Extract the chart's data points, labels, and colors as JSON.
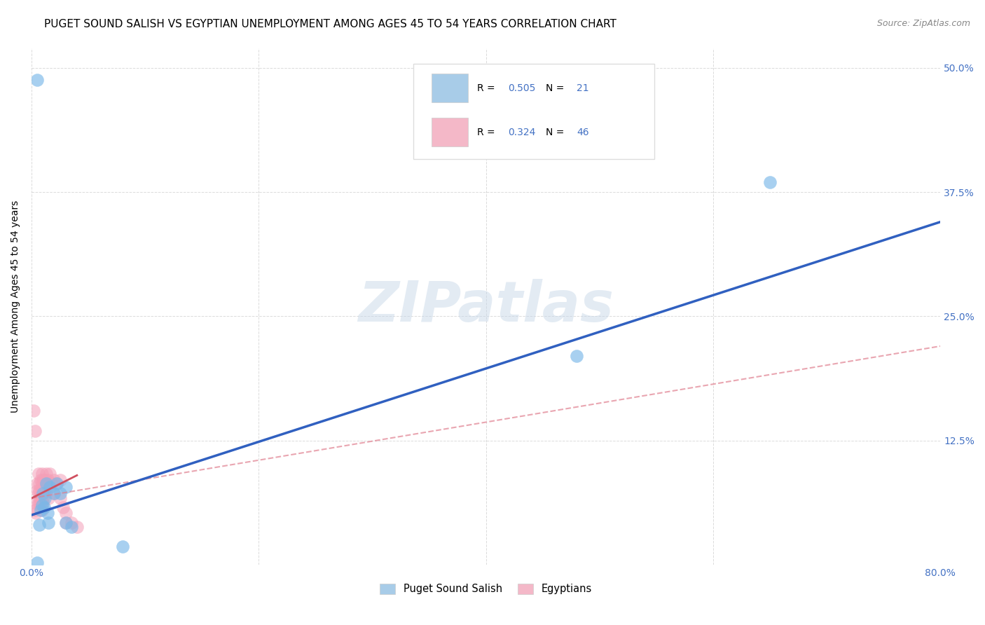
{
  "title": "PUGET SOUND SALISH VS EGYPTIAN UNEMPLOYMENT AMONG AGES 45 TO 54 YEARS CORRELATION CHART",
  "source": "Source: ZipAtlas.com",
  "ylabel": "Unemployment Among Ages 45 to 54 years",
  "x_ticks_pct": [
    0.0,
    0.2,
    0.4,
    0.6,
    0.8
  ],
  "y_ticks_pct": [
    0.0,
    0.125,
    0.25,
    0.375,
    0.5
  ],
  "y_tick_labels": [
    "",
    "12.5%",
    "25.0%",
    "37.5%",
    "50.0%"
  ],
  "watermark": "ZIPatlas",
  "legend_label1": "Puget Sound Salish",
  "legend_label2": "Egyptians",
  "blue_color": "#7ab8e8",
  "pink_color": "#f4a0b8",
  "blue_patch_color": "#a8cce8",
  "pink_patch_color": "#f4b8c8",
  "blue_line_color": "#3060c0",
  "pink_line_solid_color": "#d05060",
  "pink_line_dashed_color": "#e08090",
  "tick_color": "#4472C4",
  "blue_scatter": [
    [
      0.005,
      0.488
    ],
    [
      0.005,
      0.002
    ],
    [
      0.007,
      0.04
    ],
    [
      0.008,
      0.055
    ],
    [
      0.009,
      0.06
    ],
    [
      0.01,
      0.072
    ],
    [
      0.011,
      0.058
    ],
    [
      0.012,
      0.067
    ],
    [
      0.013,
      0.082
    ],
    [
      0.014,
      0.052
    ],
    [
      0.015,
      0.042
    ],
    [
      0.016,
      0.078
    ],
    [
      0.02,
      0.072
    ],
    [
      0.022,
      0.082
    ],
    [
      0.025,
      0.072
    ],
    [
      0.03,
      0.078
    ],
    [
      0.03,
      0.042
    ],
    [
      0.035,
      0.038
    ],
    [
      0.08,
      0.018
    ],
    [
      0.48,
      0.21
    ],
    [
      0.65,
      0.385
    ]
  ],
  "pink_scatter": [
    [
      0.002,
      0.155
    ],
    [
      0.003,
      0.135
    ],
    [
      0.003,
      0.055
    ],
    [
      0.004,
      0.062
    ],
    [
      0.004,
      0.052
    ],
    [
      0.005,
      0.082
    ],
    [
      0.005,
      0.075
    ],
    [
      0.006,
      0.092
    ],
    [
      0.006,
      0.072
    ],
    [
      0.006,
      0.062
    ],
    [
      0.007,
      0.082
    ],
    [
      0.007,
      0.075
    ],
    [
      0.007,
      0.067
    ],
    [
      0.007,
      0.062
    ],
    [
      0.008,
      0.085
    ],
    [
      0.008,
      0.072
    ],
    [
      0.008,
      0.062
    ],
    [
      0.009,
      0.092
    ],
    [
      0.009,
      0.082
    ],
    [
      0.009,
      0.072
    ],
    [
      0.009,
      0.062
    ],
    [
      0.009,
      0.055
    ],
    [
      0.01,
      0.085
    ],
    [
      0.01,
      0.075
    ],
    [
      0.01,
      0.067
    ],
    [
      0.01,
      0.062
    ],
    [
      0.011,
      0.082
    ],
    [
      0.011,
      0.072
    ],
    [
      0.012,
      0.085
    ],
    [
      0.012,
      0.075
    ],
    [
      0.013,
      0.092
    ],
    [
      0.013,
      0.072
    ],
    [
      0.015,
      0.085
    ],
    [
      0.015,
      0.067
    ],
    [
      0.016,
      0.092
    ],
    [
      0.018,
      0.082
    ],
    [
      0.02,
      0.085
    ],
    [
      0.02,
      0.072
    ],
    [
      0.022,
      0.082
    ],
    [
      0.025,
      0.085
    ],
    [
      0.025,
      0.067
    ],
    [
      0.028,
      0.058
    ],
    [
      0.03,
      0.052
    ],
    [
      0.03,
      0.042
    ],
    [
      0.035,
      0.042
    ],
    [
      0.04,
      0.038
    ]
  ],
  "blue_line": [
    [
      0.0,
      0.05
    ],
    [
      0.8,
      0.345
    ]
  ],
  "pink_line_solid": [
    [
      0.0,
      0.067
    ],
    [
      0.04,
      0.09
    ]
  ],
  "pink_line_dashed": [
    [
      0.0,
      0.067
    ],
    [
      0.8,
      0.22
    ]
  ],
  "xlim": [
    0.0,
    0.8
  ],
  "ylim": [
    0.0,
    0.52
  ],
  "background_color": "#ffffff",
  "grid_color": "#cccccc",
  "title_fontsize": 11,
  "source_fontsize": 9
}
